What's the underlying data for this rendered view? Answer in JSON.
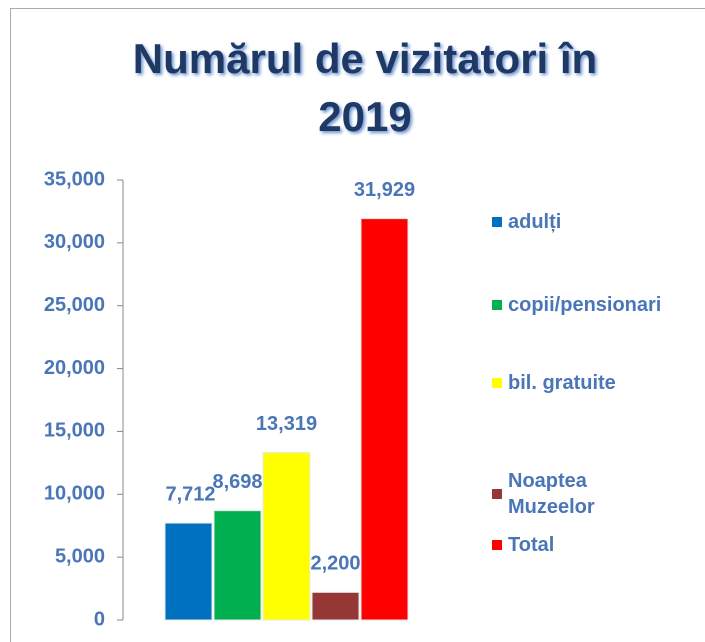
{
  "chart_data": {
    "type": "bar",
    "title": "Numărul de vizitatori în 2019",
    "categories": [
      null
    ],
    "series": [
      {
        "name": "adulți",
        "color": "#0070c0",
        "values": [
          7712
        ],
        "value_labels": [
          "7,712"
        ]
      },
      {
        "name": "copii/pensionari",
        "color": "#00b050",
        "values": [
          8698
        ],
        "value_labels": [
          "8,698"
        ]
      },
      {
        "name": "bil. gratuite",
        "color": "#ffff00",
        "values": [
          13319
        ],
        "value_labels": [
          "13,319"
        ]
      },
      {
        "name": "Noaptea Muzeelor",
        "color": "#953735",
        "values": [
          2200
        ],
        "value_labels": [
          "2,200"
        ]
      },
      {
        "name": "Total",
        "color": "#ff0000",
        "values": [
          31929
        ],
        "value_labels": [
          "31,929"
        ]
      }
    ],
    "ylim": [
      0,
      35000
    ],
    "yticks": [
      0,
      {
        "value": 5000,
        "label": "5,000"
      },
      {
        "value": 10000,
        "label": "10,000"
      },
      {
        "value": 15000,
        "label": "15,000"
      },
      {
        "value": 20000,
        "label": "20,000"
      },
      {
        "value": 25000,
        "label": "25,000"
      },
      {
        "value": 30000,
        "label": "30,000"
      },
      {
        "value": 35000,
        "label": "35,000"
      }
    ],
    "legend": "right"
  }
}
